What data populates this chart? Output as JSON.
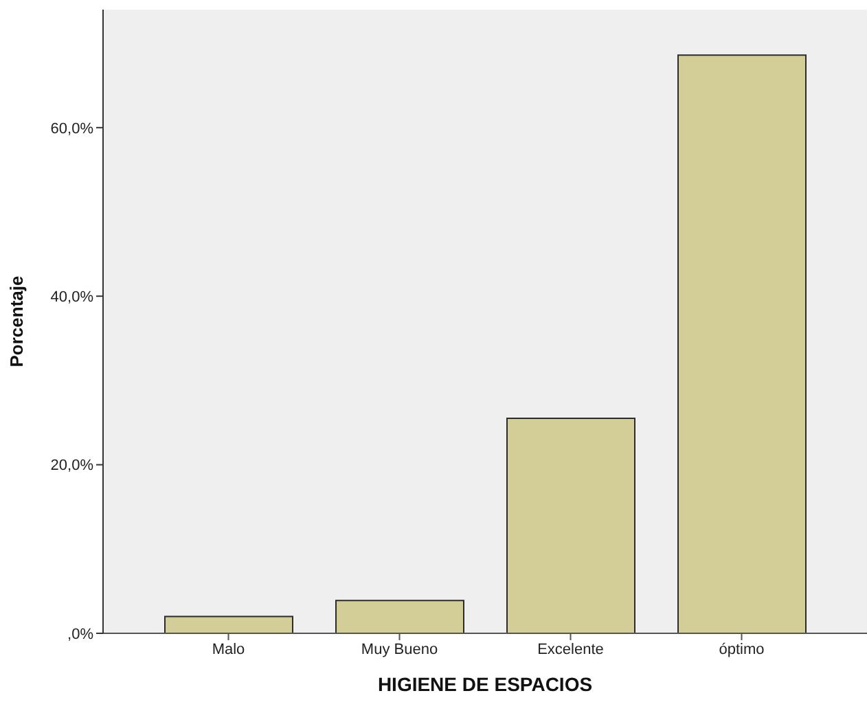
{
  "chart_data": {
    "type": "bar",
    "categories": [
      "Malo",
      "Muy Bueno",
      "Excelente",
      "óptimo"
    ],
    "values": [
      2.0,
      3.9,
      25.5,
      68.6
    ],
    "color": "#d3ce97",
    "xlabel": "HIGIENE DE ESPACIOS",
    "ylabel": "Porcentaje",
    "ylim": [
      0,
      74
    ],
    "yticks": [
      {
        "value": 0,
        "label": ",0%"
      },
      {
        "value": 20,
        "label": "20,0%"
      },
      {
        "value": 40,
        "label": "40,0%"
      },
      {
        "value": 60,
        "label": "60,0%"
      }
    ]
  }
}
